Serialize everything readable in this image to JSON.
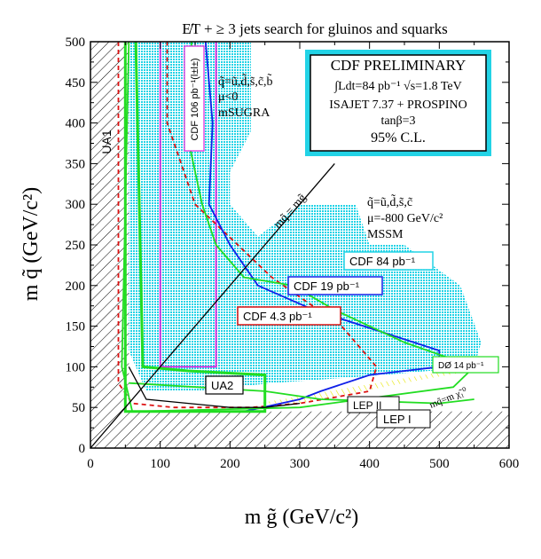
{
  "chart_data": {
    "type": "exclusion-plot",
    "title": "E̸T + ≥ 3 jets  search for gluinos and squarks",
    "xlabel": "m g̃ (GeV/c²)",
    "ylabel": "m q̃ (GeV/c²)",
    "xlim": [
      0,
      600
    ],
    "ylim": [
      0,
      500
    ],
    "x_ticks": [
      0,
      100,
      200,
      300,
      400,
      500,
      600
    ],
    "y_ticks": [
      0,
      50,
      100,
      150,
      200,
      250,
      300,
      350,
      400,
      450,
      500
    ],
    "colors": {
      "cyan": "#22d3e6",
      "green": "#22dd22",
      "blue": "#1020e8",
      "magenta": "#dd22dd",
      "red": "#dd1111",
      "yellow": "#e6e600",
      "black": "#000000"
    },
    "regions": [
      {
        "name": "CDF 84 pb-1",
        "color": "cyan",
        "points": [
          [
            55,
            500
          ],
          [
            230,
            500
          ],
          [
            230,
            390
          ],
          [
            200,
            340
          ],
          [
            200,
            300
          ],
          [
            240,
            260
          ],
          [
            300,
            300
          ],
          [
            380,
            300
          ],
          [
            400,
            250
          ],
          [
            450,
            250
          ],
          [
            530,
            200
          ],
          [
            560,
            130
          ],
          [
            550,
            100
          ],
          [
            420,
            90
          ],
          [
            260,
            80
          ],
          [
            150,
            70
          ],
          [
            80,
            70
          ],
          [
            55,
            120
          ]
        ]
      },
      {
        "name": "LEP I",
        "points": [
          [
            0,
            0
          ],
          [
            600,
            0
          ],
          [
            600,
            45
          ],
          [
            0,
            45
          ]
        ]
      },
      {
        "name": "UA1",
        "points": [
          [
            0,
            0
          ],
          [
            0,
            500
          ],
          [
            55,
            500
          ],
          [
            55,
            45
          ],
          [
            0,
            45
          ]
        ]
      },
      {
        "name": "LEP II",
        "color": "yellow",
        "points": [
          [
            240,
            55
          ],
          [
            580,
            105
          ],
          [
            580,
            100
          ],
          [
            480,
            85
          ],
          [
            300,
            55
          ]
        ]
      }
    ],
    "series": [
      {
        "name": "CDF 106 pb-1 (l±l±)",
        "color": "magenta",
        "points": [
          [
            100,
            500
          ],
          [
            100,
            100
          ],
          [
            180,
            100
          ],
          [
            180,
            500
          ]
        ]
      },
      {
        "name": "CDF 4.3 pb-1",
        "color": "red",
        "dashed": true,
        "points": [
          [
            40,
            500
          ],
          [
            40,
            80
          ],
          [
            60,
            55
          ],
          [
            120,
            50
          ],
          [
            230,
            50
          ],
          [
            300,
            55
          ],
          [
            400,
            70
          ],
          [
            410,
            100
          ],
          [
            360,
            150
          ],
          [
            260,
            210
          ],
          [
            150,
            300
          ],
          [
            110,
            400
          ],
          [
            110,
            500
          ]
        ]
      },
      {
        "name": "CDF 19 pb-1",
        "color": "blue",
        "points": [
          [
            165,
            500
          ],
          [
            175,
            400
          ],
          [
            170,
            300
          ],
          [
            200,
            250
          ],
          [
            240,
            200
          ],
          [
            320,
            170
          ],
          [
            500,
            120
          ],
          [
            500,
            100
          ],
          [
            400,
            90
          ],
          [
            330,
            70
          ],
          [
            300,
            60
          ],
          [
            220,
            45
          ],
          [
            60,
            45
          ]
        ]
      },
      {
        "name": "CDF 84 pb-1 limit",
        "color": "green",
        "points": [
          [
            145,
            500
          ],
          [
            135,
            400
          ],
          [
            160,
            300
          ],
          [
            180,
            250
          ],
          [
            220,
            210
          ],
          [
            290,
            200
          ],
          [
            350,
            170
          ],
          [
            450,
            130
          ],
          [
            550,
            100
          ],
          [
            520,
            75
          ],
          [
            300,
            50
          ],
          [
            60,
            45
          ],
          [
            45,
            100
          ],
          [
            55,
            500
          ]
        ]
      },
      {
        "name": "D0 14 pb-1",
        "color": "green",
        "points": [
          [
            55,
            80
          ],
          [
            250,
            70
          ],
          [
            330,
            60
          ],
          [
            500,
            55
          ],
          [
            550,
            60
          ]
        ]
      },
      {
        "name": "UA2",
        "color": "green",
        "bold": true,
        "points": [
          [
            50,
            500
          ],
          [
            50,
            45
          ],
          [
            250,
            45
          ],
          [
            250,
            90
          ],
          [
            140,
            95
          ],
          [
            75,
            100
          ],
          [
            65,
            500
          ]
        ]
      },
      {
        "name": "m_q = m_g",
        "color": "black",
        "points": [
          [
            0,
            0
          ],
          [
            350,
            350
          ]
        ]
      },
      {
        "name": "black boundary",
        "color": "black",
        "points": [
          [
            55,
            100
          ],
          [
            80,
            60
          ],
          [
            200,
            50
          ],
          [
            250,
            50
          ],
          [
            300,
            55
          ]
        ]
      }
    ],
    "labels": {
      "ua1": "UA1",
      "cdf106": "CDF 106 pb⁻¹(l±l±)",
      "msugra_line1": "q̃=ũ,d̃,s̃,c̃,b̃",
      "msugra_line2": "μ<0",
      "msugra_line3": "mSUGRA",
      "box_title": "CDF PRELIMINARY",
      "box_line1": "∫Ldt=84 pb⁻¹ √s=1.8 TeV",
      "box_line2": "ISAJET 7.37 + PROSPINO",
      "box_line3": "tanβ=3",
      "box_line4": "95% C.L.",
      "diag": "mq̃ = mg̃",
      "mssm_line1": "q̃=ũ,d̃,s̃,c̃",
      "mssm_line2": "μ=-800 GeV/c²",
      "mssm_line3": "MSSM",
      "cdf84": "CDF 84 pb⁻¹",
      "cdf19": "CDF 19 pb⁻¹",
      "cdf43": "CDF 4.3 pb⁻¹",
      "d0": "DØ 14 pb⁻¹",
      "ua2": "UA2",
      "lep2": "LEP II",
      "lep1": "LEP I",
      "mq_chi": "mq̃=m χ̃₁⁰"
    }
  }
}
